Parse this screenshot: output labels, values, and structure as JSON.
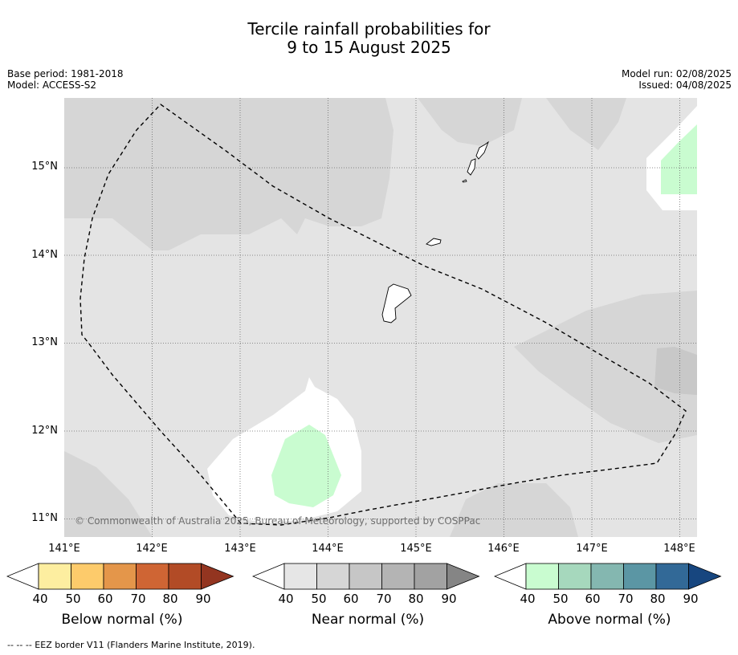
{
  "title": {
    "line1": "Tercile rainfall probabilities for",
    "line2": "9 to 15 August 2025"
  },
  "meta": {
    "base_period": "Base period: 1981-2018",
    "model": "Model: ACCESS-S2",
    "model_run": "Model run: 02/08/2025",
    "issued": "Issued: 04/08/2025"
  },
  "map": {
    "background_color": "#e4e4e4",
    "lat_labels": [
      "15°N",
      "14°N",
      "13°N",
      "12°N",
      "11°N"
    ],
    "lon_labels": [
      "141°E",
      "142°E",
      "143°E",
      "144°E",
      "145°E",
      "146°E",
      "147°E",
      "148°E"
    ],
    "copyright": "© Commonwealth of Australia 2025, Bureau of Meteorology, supported by COSPPac"
  },
  "legends": [
    {
      "title": "Below normal (%)",
      "ticks": [
        "40",
        "50",
        "60",
        "70",
        "80",
        "90"
      ],
      "colors": [
        "#fdeea0",
        "#fdcb6b",
        "#e4964a",
        "#cf6534",
        "#b24b26",
        "#933520"
      ]
    },
    {
      "title": "Near normal (%)",
      "ticks": [
        "40",
        "50",
        "60",
        "70",
        "80",
        "90"
      ],
      "colors": [
        "#e6e6e6",
        "#d6d6d6",
        "#c6c6c6",
        "#b4b4b4",
        "#a2a2a2",
        "#858585"
      ]
    },
    {
      "title": "Above normal (%)",
      "ticks": [
        "40",
        "50",
        "60",
        "70",
        "80",
        "90"
      ],
      "colors": [
        "#c9fcd0",
        "#a6d8bd",
        "#84b7b0",
        "#5b96a4",
        "#326997",
        "#17467f"
      ]
    }
  ],
  "footer": "--  --  -- EEZ border V11 (Flanders Marine Institute, 2019)."
}
